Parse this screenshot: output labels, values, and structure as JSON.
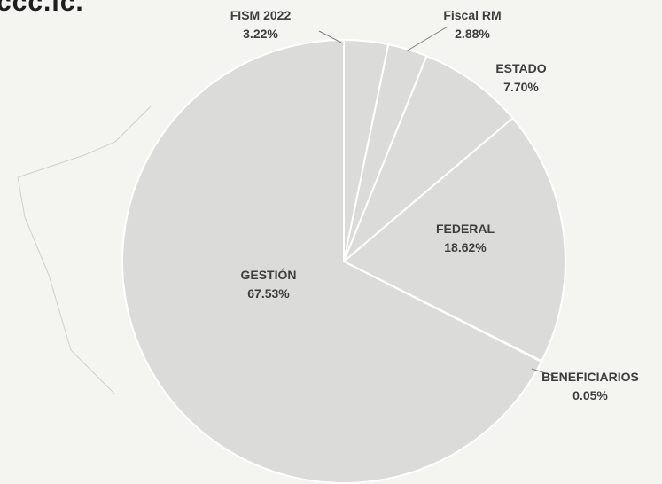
{
  "heading_fragment": "ccc.ic.",
  "colors": {
    "slice_fill": "#dbdcd9",
    "slice_stroke": "#ffffff",
    "leader": "#7a7a7a",
    "label": "#3d3d3d"
  },
  "chart_data": {
    "type": "pie",
    "title": "",
    "start_angle_deg": 0,
    "direction": "clockwise",
    "slices": [
      {
        "label": "FISM 2022",
        "value": 3.22,
        "display": "3.22%"
      },
      {
        "label": "Fiscal RM",
        "value": 2.88,
        "display": "2.88%"
      },
      {
        "label": "ESTADO",
        "value": 7.7,
        "display": "7.70%"
      },
      {
        "label": "FEDERAL",
        "value": 18.62,
        "display": "18.62%"
      },
      {
        "label": "BENEFICIARIOS",
        "value": 0.05,
        "display": "0.05%"
      },
      {
        "label": "GESTIÓN",
        "value": 67.53,
        "display": "67.53%"
      }
    ]
  }
}
